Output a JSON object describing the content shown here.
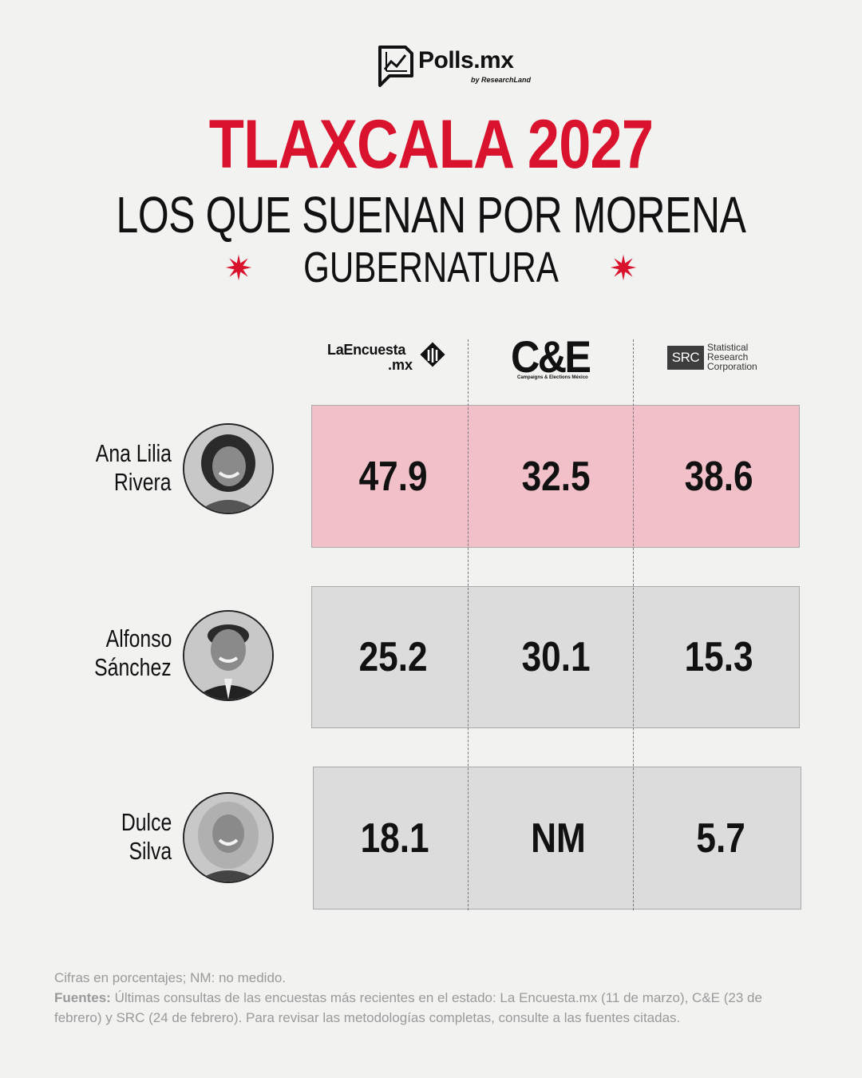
{
  "brand": {
    "name": "Polls.mx",
    "tagline": "by ResearchLand"
  },
  "heading": {
    "title": "TLAXCALA 2027",
    "subtitle": "LOS QUE SUENAN POR MORENA",
    "kicker": "GUBERNATURA"
  },
  "pollsters": {
    "laencuesta": {
      "name": "LaEncuesta",
      "suffix": ".mx"
    },
    "ce": {
      "name": "C&E",
      "sub": "Campaigns & Elections México"
    },
    "src": {
      "abbr": "SRC",
      "line1": "Statistical",
      "line2": "Research",
      "line3": "Corporation"
    }
  },
  "chart_data": {
    "type": "table",
    "columns": [
      "LaEncuesta.mx",
      "C&E",
      "SRC"
    ],
    "rows": [
      {
        "name_line1": "Ana Lilia",
        "name_line2": "Rivera",
        "values": [
          "47.9",
          "32.5",
          "38.6"
        ],
        "highlight": true
      },
      {
        "name_line1": "Alfonso",
        "name_line2": "Sánchez",
        "values": [
          "25.2",
          "30.1",
          "15.3"
        ],
        "highlight": false
      },
      {
        "name_line1": "Dulce",
        "name_line2": "Silva",
        "values": [
          "18.1",
          "NM",
          "5.7"
        ],
        "highlight": false
      }
    ]
  },
  "notes": {
    "units": "Cifras en porcentajes; NM: no medido.",
    "sources_label": "Fuentes:",
    "sources_text": "Últimas consultas de las encuestas más recientes en el estado: La Encuesta.mx (11 de marzo), C&E (23 de febrero) y SRC (24 de febrero). Para revisar las metodologías completas, consulte a las fuentes citadas."
  },
  "colors": {
    "accent": "#d9122d",
    "highlight_row": "#f2c0c8",
    "row": "#dcdcdc",
    "background": "#f2f2f0"
  },
  "icons": [
    "polls-logo-icon",
    "star-icon",
    "laencuesta-logo-icon",
    "avatar-icon"
  ]
}
